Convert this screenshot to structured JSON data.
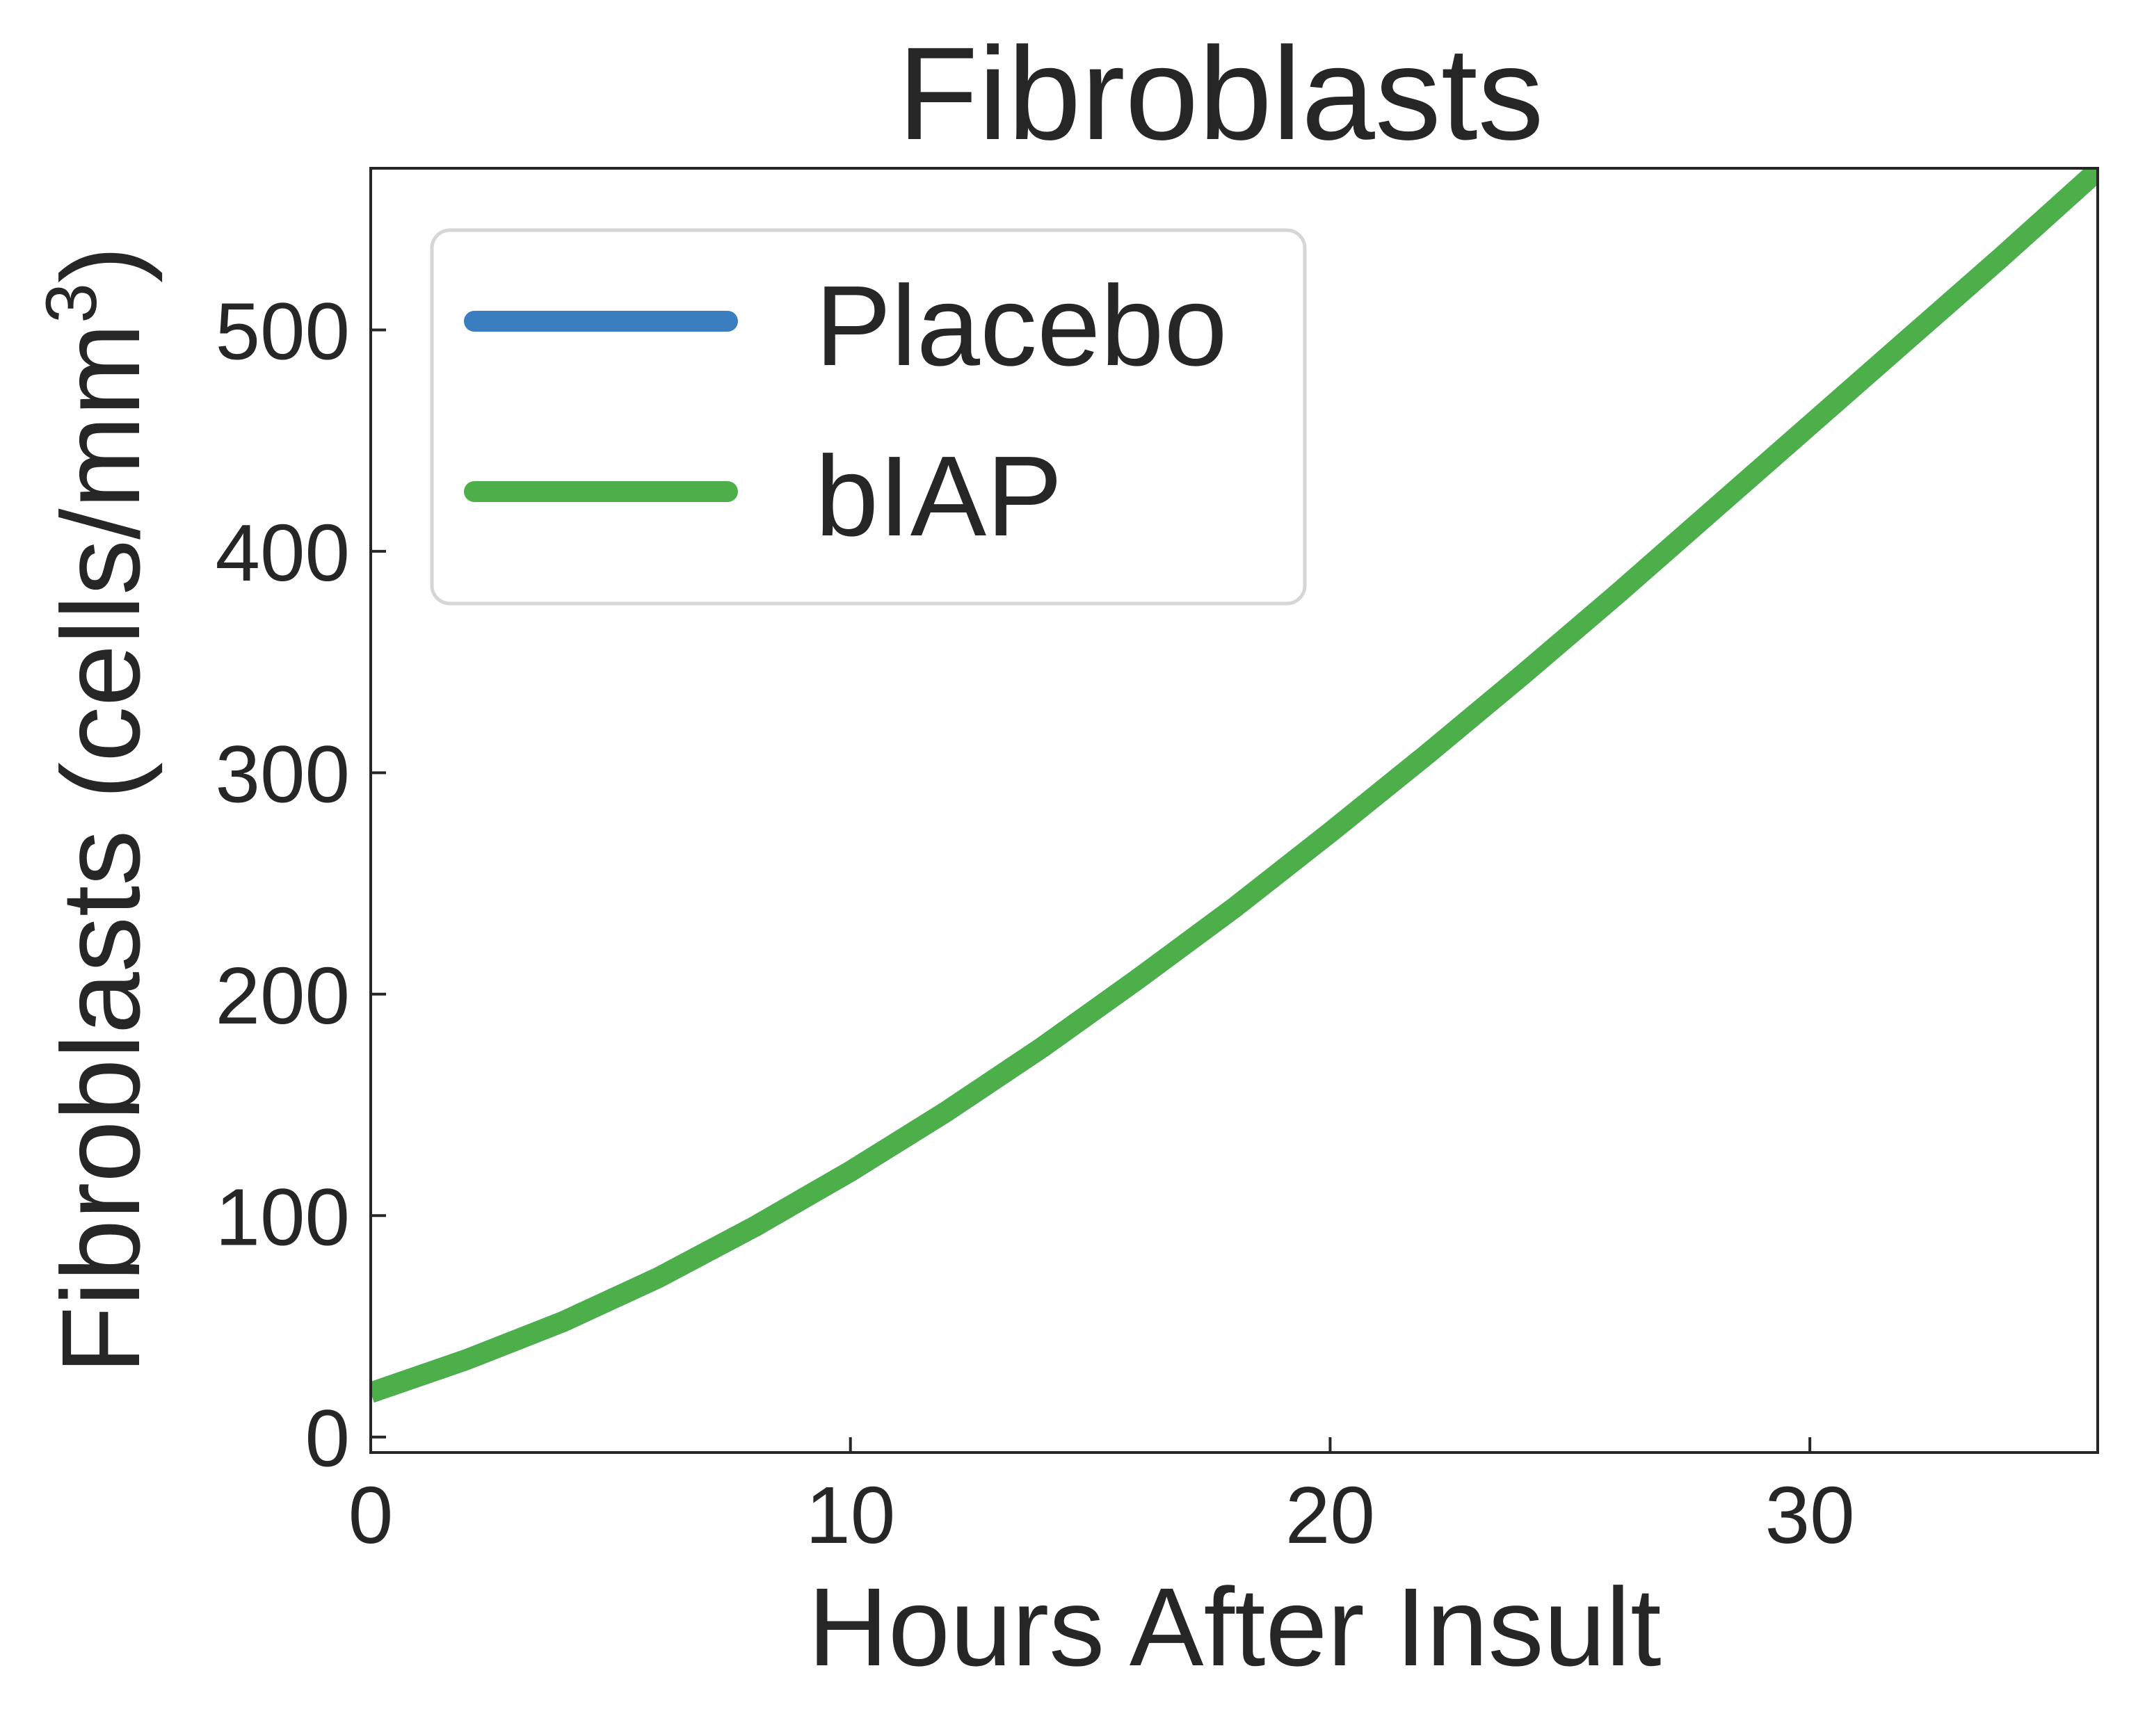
{
  "chart_data": {
    "type": "line",
    "title": "Fibroblasts",
    "xlabel": "Hours After Insult",
    "ylabel_main": "Fibroblasts (cells/mm",
    "ylabel_sup": "3",
    "ylabel_close": ")",
    "xlim": [
      0,
      36
    ],
    "ylim": [
      -7,
      573
    ],
    "xticks": [
      0,
      10,
      20,
      30
    ],
    "yticks": [
      0,
      100,
      200,
      300,
      400,
      500
    ],
    "grid": false,
    "legend_position": "top-left",
    "series": [
      {
        "name": "Placebo",
        "color": "#3a7ebf",
        "x": [
          0,
          2,
          4,
          6,
          8,
          10,
          12,
          14,
          16,
          18,
          20,
          22,
          24,
          26,
          28,
          30,
          32,
          34,
          36
        ],
        "y": [
          20,
          35,
          52,
          72,
          95,
          120,
          147,
          176,
          207,
          239,
          273,
          308,
          344,
          381,
          419,
          457,
          495,
          533,
          572
        ]
      },
      {
        "name": "bIAP",
        "color": "#4daf4a",
        "x": [
          0,
          2,
          4,
          6,
          8,
          10,
          12,
          14,
          16,
          18,
          20,
          22,
          24,
          26,
          28,
          30,
          32,
          34,
          36
        ],
        "y": [
          20,
          35,
          52,
          72,
          95,
          120,
          147,
          176,
          207,
          239,
          273,
          308,
          344,
          381,
          419,
          457,
          495,
          533,
          572
        ]
      }
    ]
  }
}
